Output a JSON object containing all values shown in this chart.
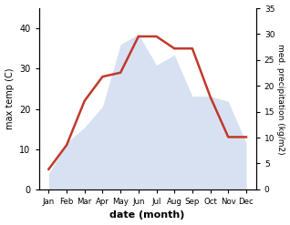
{
  "months": [
    "Jan",
    "Feb",
    "Mar",
    "Apr",
    "May",
    "Jun",
    "Jul",
    "Aug",
    "Sep",
    "Oct",
    "Nov",
    "Dec"
  ],
  "temperature": [
    5,
    11,
    22,
    28,
    29,
    38,
    38,
    35,
    35,
    23,
    13,
    13
  ],
  "precipitation": [
    3,
    9,
    12,
    16,
    28,
    30,
    24,
    26,
    18,
    18,
    17,
    9
  ],
  "temp_color": "#c0392b",
  "precip_color": "#b8c9e8",
  "title": "",
  "xlabel": "date (month)",
  "ylabel_left": "max temp (C)",
  "ylabel_right": "med. precipitation (kg/m2)",
  "ylim_left": [
    0,
    45
  ],
  "ylim_right": [
    0,
    35
  ],
  "yticks_left": [
    0,
    10,
    20,
    30,
    40
  ],
  "yticks_right": [
    0,
    5,
    10,
    15,
    20,
    25,
    30,
    35
  ],
  "temp_linewidth": 1.8,
  "precip_alpha": 0.55
}
